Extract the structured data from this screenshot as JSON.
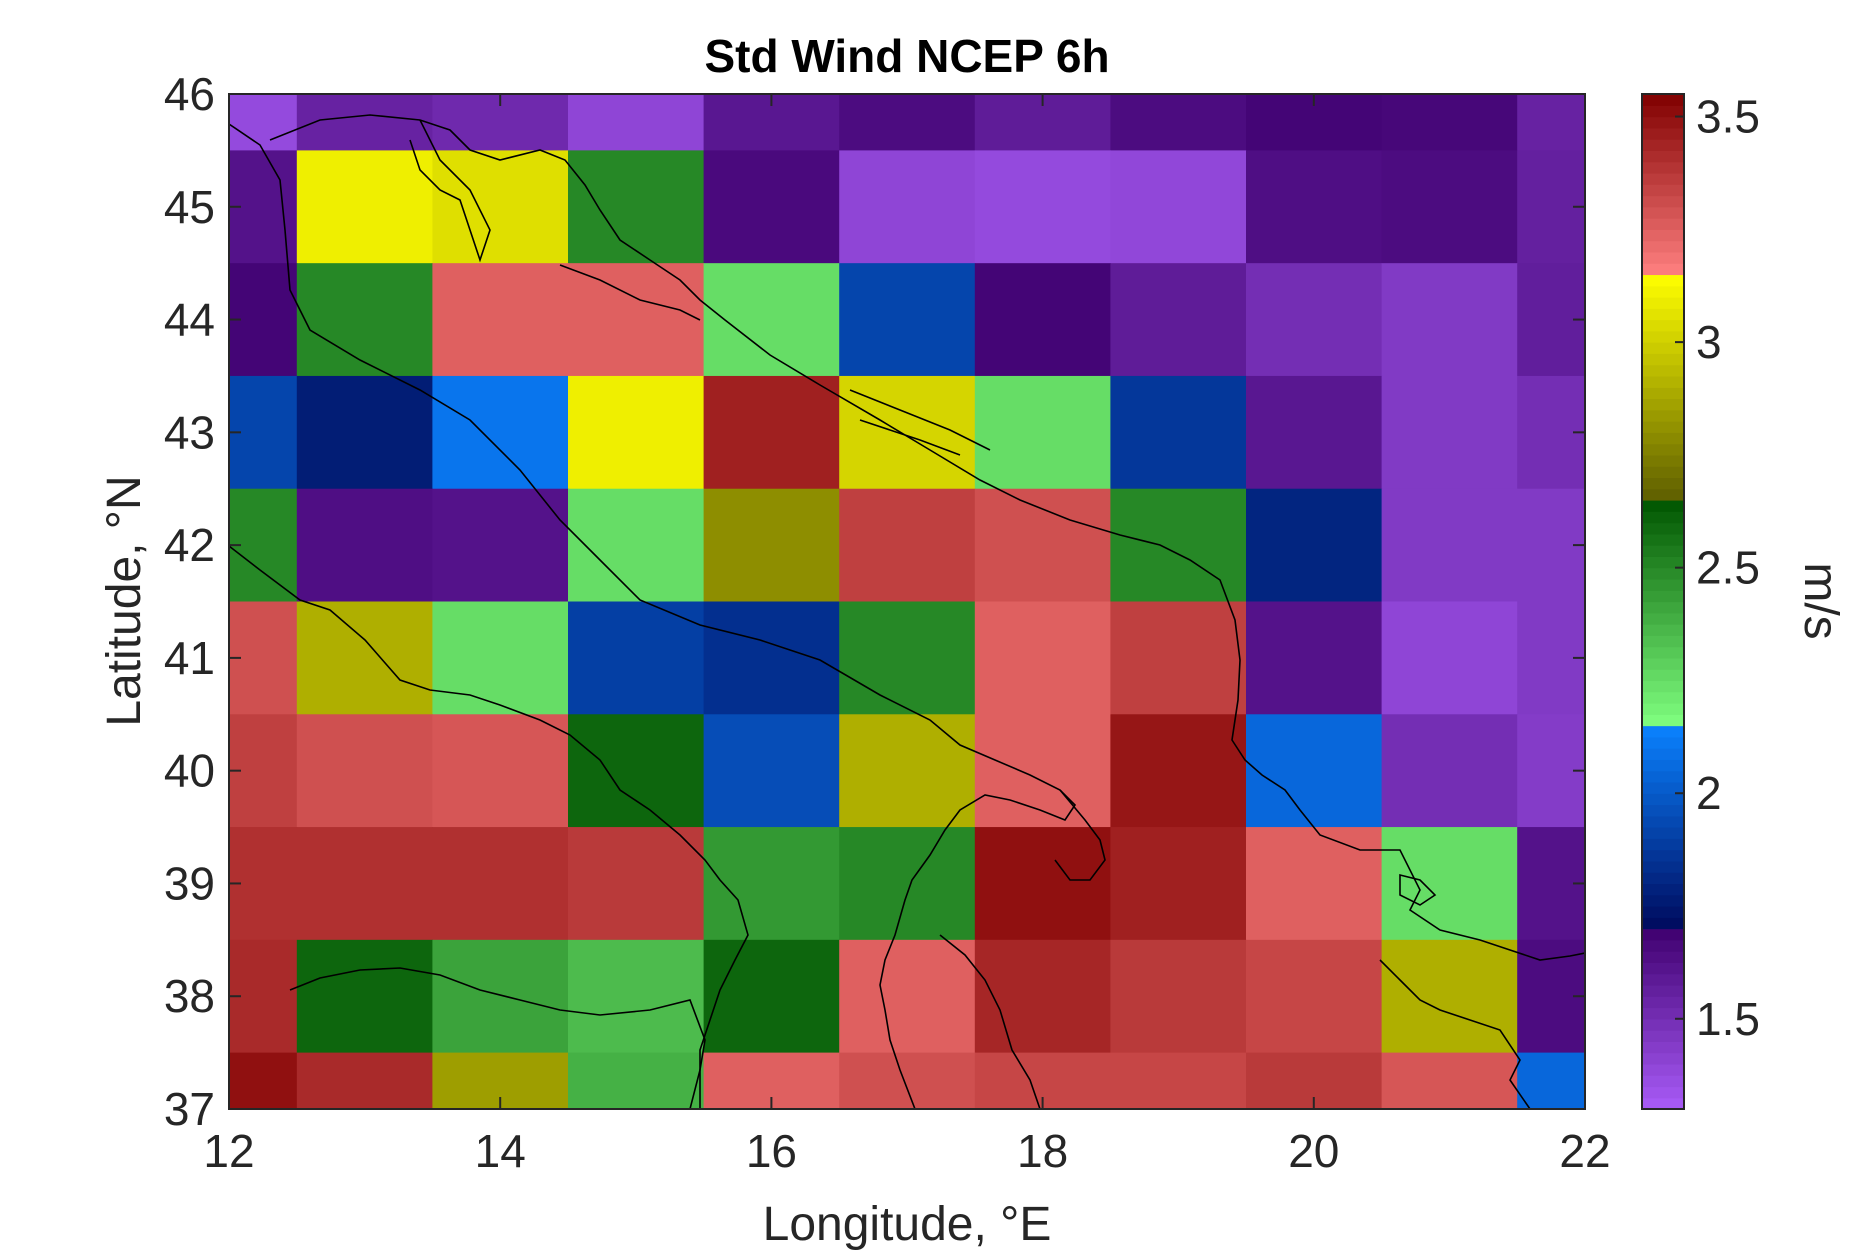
{
  "chart_data": {
    "type": "heatmap",
    "title": "Std Wind NCEP 6h",
    "xlabel": "Longitude, °E",
    "ylabel": "Latitude, °N",
    "xlim": [
      12,
      22
    ],
    "ylim": [
      37,
      46
    ],
    "x_ticks": [
      12,
      14,
      16,
      18,
      20,
      22
    ],
    "y_ticks": [
      37,
      38,
      39,
      40,
      41,
      42,
      43,
      44,
      45,
      46
    ],
    "x_tick_labels": [
      "12",
      "14",
      "16",
      "18",
      "20",
      "22"
    ],
    "y_tick_labels": [
      "37",
      "38",
      "39",
      "40",
      "41",
      "42",
      "43",
      "44",
      "45",
      "46"
    ],
    "x_edges": [
      12,
      12.5,
      13.5,
      14.5,
      15.5,
      16.5,
      17.5,
      18.5,
      19.5,
      20.5,
      21.5,
      22
    ],
    "y_edges": [
      46,
      45.5,
      44.5,
      43.5,
      42.5,
      41.5,
      40.5,
      39.5,
      38.5,
      37.5,
      37
    ],
    "values": [
      [
        1.38,
        1.55,
        1.52,
        1.4,
        1.6,
        1.65,
        1.58,
        1.65,
        1.68,
        1.67,
        1.55
      ],
      [
        1.62,
        3.1,
        3.05,
        2.5,
        1.66,
        1.4,
        1.38,
        1.39,
        1.64,
        1.65,
        1.56
      ],
      [
        1.68,
        2.5,
        3.25,
        3.25,
        2.25,
        1.92,
        1.68,
        1.58,
        1.5,
        1.45,
        1.57
      ],
      [
        1.92,
        1.77,
        2.1,
        3.1,
        3.45,
        3.02,
        2.25,
        1.87,
        1.6,
        1.45,
        1.5
      ],
      [
        2.5,
        1.64,
        1.62,
        2.25,
        2.8,
        3.35,
        3.3,
        2.5,
        1.8,
        1.45,
        1.45
      ],
      [
        3.3,
        2.9,
        2.25,
        1.9,
        1.84,
        2.5,
        3.25,
        3.35,
        1.62,
        1.4,
        1.45
      ],
      [
        3.35,
        3.3,
        3.28,
        2.6,
        1.95,
        2.9,
        3.25,
        3.48,
        2.05,
        1.5,
        1.44
      ],
      [
        3.4,
        3.4,
        3.4,
        3.37,
        2.45,
        2.5,
        3.5,
        3.45,
        3.25,
        2.25,
        1.62
      ],
      [
        3.42,
        2.6,
        2.42,
        2.35,
        2.6,
        3.25,
        3.43,
        3.37,
        3.33,
        2.9,
        1.65
      ],
      [
        3.5,
        3.42,
        2.85,
        2.38,
        3.25,
        3.3,
        3.33,
        3.33,
        3.37,
        3.28,
        2.05
      ]
    ],
    "colorbar": {
      "label": "m/s",
      "clim": [
        1.3,
        3.55
      ],
      "ticks": [
        1.5,
        2,
        2.5,
        3,
        3.5
      ],
      "tick_labels": [
        "1.5",
        "2",
        "2.5",
        "3",
        "3.5"
      ],
      "segments": [
        {
          "from": 1.3,
          "to": 1.7,
          "colors": [
            "#a95cf8",
            "#3f006f"
          ]
        },
        {
          "from": 1.7,
          "to": 2.15,
          "colors": [
            "#000a5c",
            "#0a82ff"
          ]
        },
        {
          "from": 2.15,
          "to": 2.65,
          "colors": [
            "#80ff80",
            "#005500"
          ]
        },
        {
          "from": 2.65,
          "to": 3.15,
          "colors": [
            "#5e5e00",
            "#ffff00"
          ]
        },
        {
          "from": 3.15,
          "to": 3.55,
          "colors": [
            "#ff8080",
            "#800000"
          ]
        }
      ]
    },
    "grid": false,
    "legend": "colorbar-right"
  }
}
